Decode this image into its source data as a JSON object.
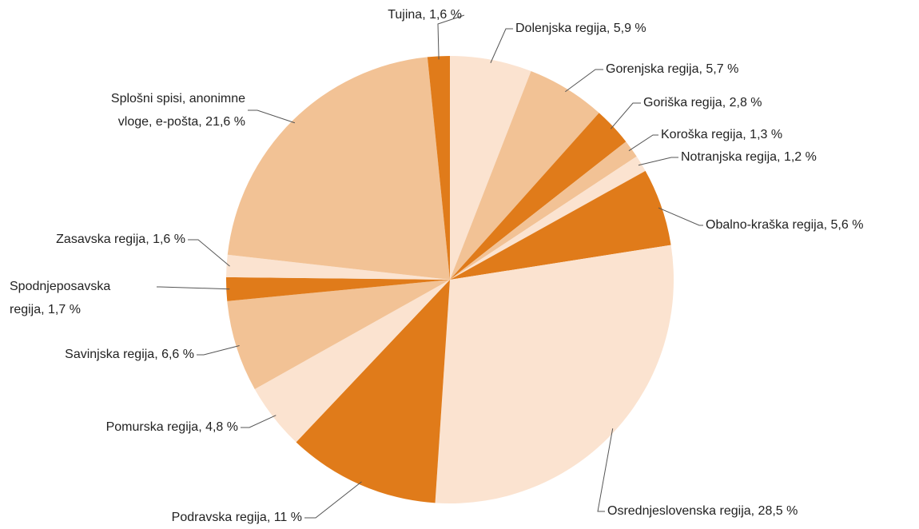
{
  "chart_data": {
    "type": "pie",
    "values": [
      5.9,
      5.7,
      2.8,
      1.3,
      1.2,
      5.6,
      28.5,
      11,
      4.8,
      6.6,
      1.7,
      1.6,
      21.6,
      1.6
    ],
    "value_labels": [
      [
        "Dolenjska regija, 5,9 %"
      ],
      [
        "Gorenjska regija, 5,7 %"
      ],
      [
        "Goriška regija, 2,8 %"
      ],
      [
        "Koroška regija, 1,3 %"
      ],
      [
        "Notranjska regija, 1,2 %"
      ],
      [
        "Obalno-kraška regija, 5,6 %"
      ],
      [
        "Osrednjeslovenska regija, 28,5 %"
      ],
      [
        "Podravska regija, 11 %"
      ],
      [
        "Pomurska regija, 4,8 %"
      ],
      [
        "Savinjska regija, 6,6 %"
      ],
      [
        "Spodnjeposavska",
        "regija, 1,7 %"
      ],
      [
        "Zasavska regija, 1,6 %"
      ],
      [
        "Splošni spisi, anonimne",
        "vloge, e-pošta, 21,6 %"
      ],
      [
        "Tujina, 1,6 %"
      ]
    ],
    "colors": [
      "#fbe3d0",
      "#f2c295",
      "#e07b1a",
      "#f2c295",
      "#fbe3d0",
      "#e07b1a",
      "#fbe3d0",
      "#e07b1a",
      "#fbe3d0",
      "#f2c295",
      "#e07b1a",
      "#fbe3d0",
      "#f2c295",
      "#e07b1a"
    ]
  }
}
